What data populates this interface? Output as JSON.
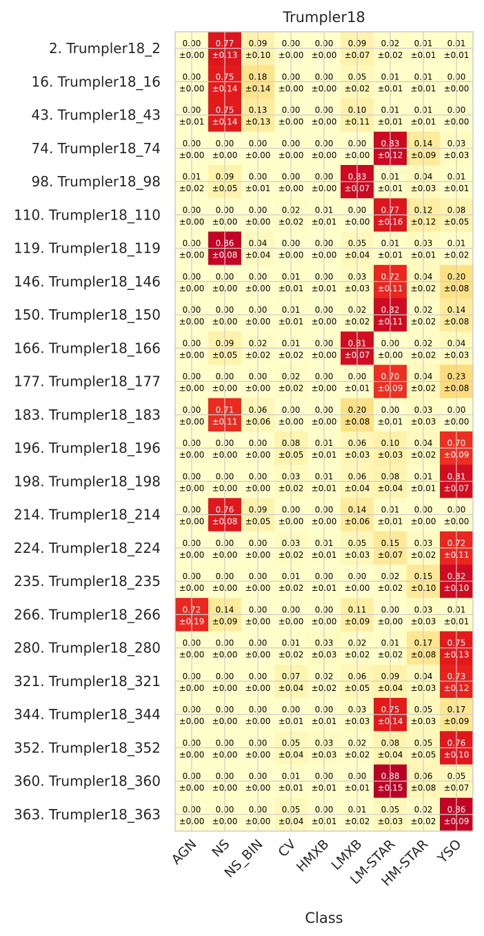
{
  "chart_data": {
    "type": "heatmap",
    "title": "Trumpler18",
    "xlabel": "Class",
    "ylabel": "",
    "columns": [
      "AGN",
      "NS",
      "NS_BIN",
      "CV",
      "HMXB",
      "LMXB",
      "LM-STAR",
      "HM-STAR",
      "YSO"
    ],
    "rows": [
      "2. Trumpler18_2",
      "16. Trumpler18_16",
      "43. Trumpler18_43",
      "74. Trumpler18_74",
      "98. Trumpler18_98",
      "110. Trumpler18_110",
      "119. Trumpler18_119",
      "146. Trumpler18_146",
      "150. Trumpler18_150",
      "166. Trumpler18_166",
      "177. Trumpler18_177",
      "183. Trumpler18_183",
      "196. Trumpler18_196",
      "198. Trumpler18_198",
      "214. Trumpler18_214",
      "224. Trumpler18_224",
      "235. Trumpler18_235",
      "266. Trumpler18_266",
      "280. Trumpler18_280",
      "321. Trumpler18_321",
      "344. Trumpler18_344",
      "352. Trumpler18_352",
      "360. Trumpler18_360",
      "363. Trumpler18_363"
    ],
    "values": [
      [
        "0.00",
        "0.77",
        "0.09",
        "0.00",
        "0.00",
        "0.09",
        "0.02",
        "0.01",
        "0.01"
      ],
      [
        "0.00",
        "0.75",
        "0.18",
        "0.00",
        "0.00",
        "0.05",
        "0.01",
        "0.01",
        "0.00"
      ],
      [
        "0.00",
        "0.75",
        "0.13",
        "0.00",
        "0.00",
        "0.10",
        "0.01",
        "0.01",
        "0.00"
      ],
      [
        "0.00",
        "0.00",
        "0.00",
        "0.00",
        "0.00",
        "0.00",
        "0.83",
        "0.14",
        "0.03"
      ],
      [
        "0.01",
        "0.09",
        "0.00",
        "0.00",
        "0.00",
        "0.83",
        "0.01",
        "0.04",
        "0.01"
      ],
      [
        "0.00",
        "0.00",
        "0.00",
        "0.02",
        "0.01",
        "0.00",
        "0.77",
        "0.12",
        "0.08"
      ],
      [
        "0.00",
        "0.86",
        "0.04",
        "0.00",
        "0.00",
        "0.05",
        "0.01",
        "0.03",
        "0.01"
      ],
      [
        "0.00",
        "0.00",
        "0.00",
        "0.01",
        "0.00",
        "0.03",
        "0.72",
        "0.04",
        "0.20"
      ],
      [
        "0.00",
        "0.00",
        "0.00",
        "0.01",
        "0.00",
        "0.02",
        "0.82",
        "0.02",
        "0.14"
      ],
      [
        "0.00",
        "0.09",
        "0.02",
        "0.01",
        "0.00",
        "0.81",
        "0.00",
        "0.02",
        "0.04"
      ],
      [
        "0.00",
        "0.00",
        "0.00",
        "0.02",
        "0.00",
        "0.00",
        "0.70",
        "0.04",
        "0.23"
      ],
      [
        "0.00",
        "0.71",
        "0.06",
        "0.00",
        "0.00",
        "0.20",
        "0.00",
        "0.03",
        "0.00"
      ],
      [
        "0.00",
        "0.00",
        "0.00",
        "0.08",
        "0.01",
        "0.06",
        "0.10",
        "0.04",
        "0.70"
      ],
      [
        "0.00",
        "0.00",
        "0.00",
        "0.03",
        "0.01",
        "0.06",
        "0.08",
        "0.01",
        "0.81"
      ],
      [
        "0.00",
        "0.76",
        "0.09",
        "0.00",
        "0.00",
        "0.14",
        "0.01",
        "0.00",
        "0.00"
      ],
      [
        "0.00",
        "0.00",
        "0.00",
        "0.03",
        "0.01",
        "0.05",
        "0.15",
        "0.03",
        "0.72"
      ],
      [
        "0.00",
        "0.00",
        "0.00",
        "0.01",
        "0.00",
        "0.00",
        "0.02",
        "0.15",
        "0.82"
      ],
      [
        "0.72",
        "0.14",
        "0.00",
        "0.00",
        "0.00",
        "0.11",
        "0.00",
        "0.03",
        "0.01"
      ],
      [
        "0.00",
        "0.00",
        "0.00",
        "0.01",
        "0.03",
        "0.02",
        "0.01",
        "0.17",
        "0.75"
      ],
      [
        "0.00",
        "0.00",
        "0.00",
        "0.07",
        "0.02",
        "0.06",
        "0.09",
        "0.04",
        "0.73"
      ],
      [
        "0.00",
        "0.00",
        "0.00",
        "0.00",
        "0.00",
        "0.03",
        "0.75",
        "0.05",
        "0.17"
      ],
      [
        "0.00",
        "0.00",
        "0.00",
        "0.05",
        "0.03",
        "0.02",
        "0.08",
        "0.05",
        "0.76"
      ],
      [
        "0.00",
        "0.00",
        "0.00",
        "0.01",
        "0.00",
        "0.00",
        "0.88",
        "0.06",
        "0.05"
      ],
      [
        "0.00",
        "0.00",
        "0.00",
        "0.05",
        "0.00",
        "0.01",
        "0.05",
        "0.02",
        "0.86"
      ]
    ],
    "errors": [
      [
        "±0.00",
        "±0.13",
        "±0.10",
        "±0.00",
        "±0.00",
        "±0.07",
        "±0.02",
        "±0.01",
        "±0.01"
      ],
      [
        "±0.00",
        "±0.14",
        "±0.14",
        "±0.00",
        "±0.00",
        "±0.02",
        "±0.01",
        "±0.01",
        "±0.00"
      ],
      [
        "±0.01",
        "±0.14",
        "±0.13",
        "±0.00",
        "±0.00",
        "±0.11",
        "±0.01",
        "±0.01",
        "±0.00"
      ],
      [
        "±0.00",
        "±0.00",
        "±0.00",
        "±0.00",
        "±0.00",
        "±0.00",
        "±0.12",
        "±0.09",
        "±0.03"
      ],
      [
        "±0.02",
        "±0.05",
        "±0.01",
        "±0.00",
        "±0.00",
        "±0.07",
        "±0.01",
        "±0.03",
        "±0.01"
      ],
      [
        "±0.00",
        "±0.00",
        "±0.00",
        "±0.02",
        "±0.01",
        "±0.00",
        "±0.16",
        "±0.12",
        "±0.05"
      ],
      [
        "±0.00",
        "±0.08",
        "±0.04",
        "±0.00",
        "±0.00",
        "±0.04",
        "±0.01",
        "±0.01",
        "±0.02"
      ],
      [
        "±0.00",
        "±0.00",
        "±0.00",
        "±0.01",
        "±0.01",
        "±0.03",
        "±0.11",
        "±0.02",
        "±0.08"
      ],
      [
        "±0.00",
        "±0.00",
        "±0.00",
        "±0.01",
        "±0.00",
        "±0.02",
        "±0.11",
        "±0.02",
        "±0.08"
      ],
      [
        "±0.00",
        "±0.05",
        "±0.02",
        "±0.02",
        "±0.00",
        "±0.07",
        "±0.00",
        "±0.02",
        "±0.03"
      ],
      [
        "±0.00",
        "±0.00",
        "±0.00",
        "±0.02",
        "±0.00",
        "±0.01",
        "±0.09",
        "±0.02",
        "±0.08"
      ],
      [
        "±0.00",
        "±0.11",
        "±0.06",
        "±0.00",
        "±0.00",
        "±0.08",
        "±0.01",
        "±0.03",
        "±0.00"
      ],
      [
        "±0.00",
        "±0.00",
        "±0.00",
        "±0.05",
        "±0.01",
        "±0.03",
        "±0.03",
        "±0.02",
        "±0.09"
      ],
      [
        "±0.00",
        "±0.00",
        "±0.00",
        "±0.02",
        "±0.01",
        "±0.04",
        "±0.04",
        "±0.01",
        "±0.07"
      ],
      [
        "±0.00",
        "±0.08",
        "±0.05",
        "±0.00",
        "±0.00",
        "±0.06",
        "±0.01",
        "±0.00",
        "±0.00"
      ],
      [
        "±0.00",
        "±0.00",
        "±0.00",
        "±0.02",
        "±0.01",
        "±0.03",
        "±0.07",
        "±0.02",
        "±0.11"
      ],
      [
        "±0.00",
        "±0.00",
        "±0.00",
        "±0.02",
        "±0.01",
        "±0.00",
        "±0.02",
        "±0.10",
        "±0.10"
      ],
      [
        "±0.19",
        "±0.09",
        "±0.00",
        "±0.00",
        "±0.00",
        "±0.09",
        "±0.00",
        "±0.03",
        "±0.01"
      ],
      [
        "±0.00",
        "±0.00",
        "±0.00",
        "±0.02",
        "±0.03",
        "±0.02",
        "±0.02",
        "±0.08",
        "±0.13"
      ],
      [
        "±0.00",
        "±0.00",
        "±0.00",
        "±0.04",
        "±0.02",
        "±0.05",
        "±0.04",
        "±0.03",
        "±0.12"
      ],
      [
        "±0.00",
        "±0.00",
        "±0.00",
        "±0.01",
        "±0.01",
        "±0.03",
        "±0.14",
        "±0.03",
        "±0.09"
      ],
      [
        "±0.00",
        "±0.00",
        "±0.00",
        "±0.04",
        "±0.03",
        "±0.02",
        "±0.04",
        "±0.05",
        "±0.10"
      ],
      [
        "±0.00",
        "±0.00",
        "±0.00",
        "±0.01",
        "±0.01",
        "±0.01",
        "±0.15",
        "±0.08",
        "±0.07"
      ],
      [
        "±0.00",
        "±0.00",
        "±0.00",
        "±0.04",
        "±0.01",
        "±0.02",
        "±0.03",
        "±0.02",
        "±0.09"
      ]
    ],
    "colormap": "YlOrRd",
    "value_range": [
      0,
      1
    ],
    "grid": true
  }
}
